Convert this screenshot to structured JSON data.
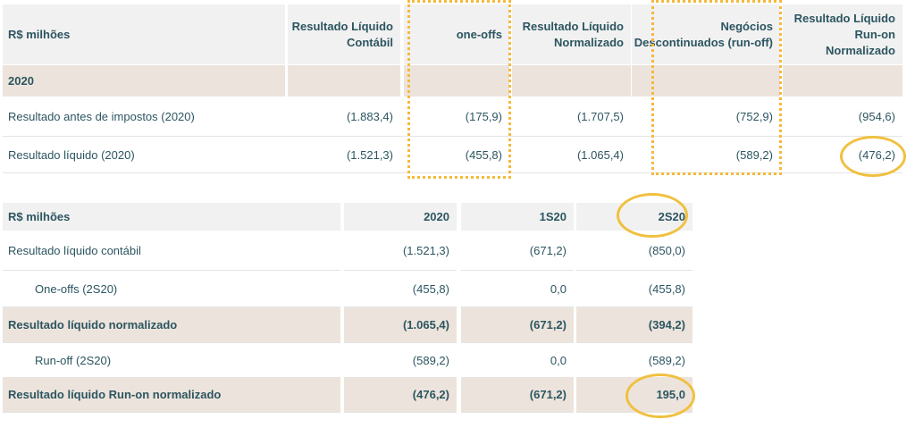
{
  "table1": {
    "headers": [
      "R$ milhões",
      "Resultado Líquido Contábil",
      "one-offs",
      "Resultado Líquido Normalizado",
      "Negócios Descontinuados (run-off)",
      "Resultado Líquido Run-on Normalizado"
    ],
    "section": "2020",
    "rows": [
      {
        "label": "Resultado antes de impostos (2020)",
        "values": [
          "(1.883,4)",
          "(175,9)",
          "(1.707,5)",
          "(752,9)",
          "(954,6)"
        ]
      },
      {
        "label": "Resultado líquido (2020)",
        "values": [
          "(1.521,3)",
          "(455,8)",
          "(1.065,4)",
          "(589,2)",
          "(476,2)"
        ]
      }
    ]
  },
  "table2": {
    "headers": [
      "R$ milhões",
      "2020",
      "1S20",
      "2S20"
    ],
    "rows": [
      {
        "label": "Resultado líquido contábil",
        "values": [
          "(1.521,3)",
          "(671,2)",
          "(850,0)"
        ],
        "style": "normal"
      },
      {
        "label": "One-offs (2S20)",
        "values": [
          "(455,8)",
          "0,0",
          "(455,8)"
        ],
        "style": "indent"
      },
      {
        "label": "Resultado líquido normalizado",
        "values": [
          "(1.065,4)",
          "(671,2)",
          "(394,2)"
        ],
        "style": "subtotal"
      },
      {
        "label": "Run-off (2S20)",
        "values": [
          "(589,2)",
          "0,0",
          "(589,2)"
        ],
        "style": "indent"
      },
      {
        "label": "Resultado líquido Run-on normalizado",
        "values": [
          "(476,2)",
          "(671,2)",
          "195,0"
        ],
        "style": "subtotal"
      }
    ]
  },
  "colors": {
    "text": "#2c5560",
    "header_bg": "#f1f1f1",
    "section_bg": "#ece4dc",
    "highlight": "#f5b93a"
  }
}
